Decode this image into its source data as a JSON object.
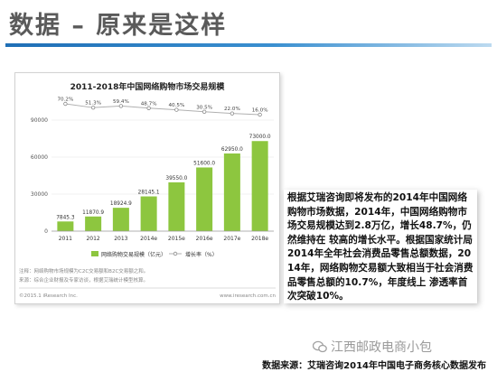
{
  "page": {
    "heading": "数据 – 原来是这样"
  },
  "chart_data": {
    "type": "bar",
    "title": "2011-2018年中国网络购物市场交易规模",
    "categories": [
      "2011",
      "2012",
      "2013",
      "2014e",
      "2015e",
      "2016e",
      "2017e",
      "2018e"
    ],
    "series": [
      {
        "name": "网络购物交易规模（亿元）",
        "kind": "bar",
        "values": [
          7845.3,
          11870.9,
          18924.9,
          28145.1,
          39550.0,
          51600.0,
          62950.0,
          73000.0
        ],
        "labels": [
          "7845.3",
          "11870.9",
          "18924.9",
          "28145.1",
          "39550.0",
          "51600.0",
          "62950.0",
          "73000.0"
        ],
        "color": "#8dc63f"
      },
      {
        "name": "增长率（%）",
        "kind": "line",
        "values": [
          70.2,
          51.3,
          59.4,
          48.7,
          40.5,
          30.5,
          22.0,
          16.0
        ],
        "labels": [
          "70.2%",
          "51.3%",
          "59.4%",
          "48.7%",
          "40.5%",
          "30.5%",
          "22.0%",
          "16.0%"
        ],
        "color": "#b0b0b0"
      }
    ],
    "y_ticks": [
      "0",
      "30000",
      "60000",
      "90000"
    ],
    "ylim": [
      0,
      90000
    ],
    "legend_position": "bottom",
    "notes": [
      "注释：网络购物市场规模为C2C交易额和B2C交易额之和。",
      "来源：综合企业财报及专家访谈，根据艾瑞统计模型核算。"
    ],
    "copyright": "©2015.1 iResearch Inc.",
    "site": "www.iresearch.com.cn"
  },
  "text_box": {
    "content": "根据艾瑞咨询即将发布的2014年中国网络购物市场数据，2014年，中国网络购物市场交易规模达到2.8万亿，增长48.7%，仍然维持在 较高的增长水平。根据国家统计局2014年全年社会消费品零售总额数据，2014年，网络购物交易额大致相当于社会消费品零售总额的10.7%，年度线上 渗透率首次突破10%。"
  },
  "watermark": {
    "text": "江西邮政电商小包"
  },
  "footer": {
    "source": "数据来源：艾瑞咨询2014年中国电子商务核心数据发布"
  }
}
